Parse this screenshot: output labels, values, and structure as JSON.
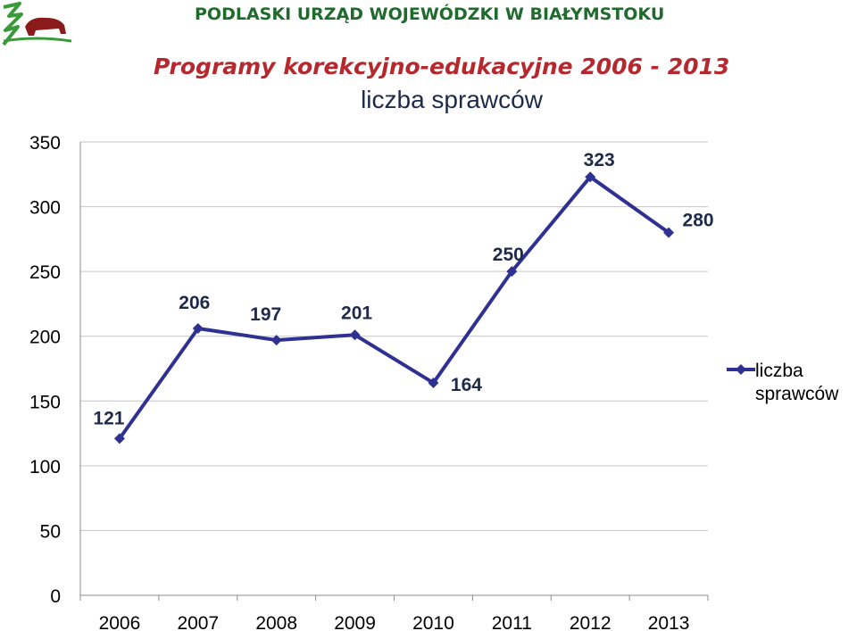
{
  "header": {
    "organization": "PODLASKI URZĄD WOJEWÓDZKI W BIAŁYMSTOKU",
    "title": "Programy korekcyjno-edukacyjne  2006 - 2013"
  },
  "colors": {
    "series": "#2e3192",
    "grid": "#c6c6c6",
    "org_text": "#1f6b2c",
    "title_text": "#b5282e",
    "logo_green": "#3a9a3a",
    "logo_red": "#8b1a1a"
  },
  "chart_data": {
    "type": "line",
    "title": "liczba sprawców",
    "categories": [
      "2006",
      "2007",
      "2008",
      "2009",
      "2010",
      "2011",
      "2012",
      "2013"
    ],
    "series": [
      {
        "name": "liczba sprawców",
        "values": [
          121,
          206,
          197,
          201,
          164,
          250,
          323,
          280
        ]
      }
    ],
    "data_labels": [
      "121",
      "206",
      "197",
      "201",
      "164",
      "250",
      "323",
      "280"
    ],
    "ylim": [
      0,
      350
    ],
    "yticks": [
      0,
      50,
      100,
      150,
      200,
      250,
      300,
      350
    ],
    "ytick_labels": [
      "0",
      "50",
      "100",
      "150",
      "200",
      "250",
      "300",
      "350"
    ],
    "grid": true,
    "legend_position": "right",
    "legend_label": [
      "liczba",
      "sprawców"
    ],
    "marker": "diamond"
  }
}
